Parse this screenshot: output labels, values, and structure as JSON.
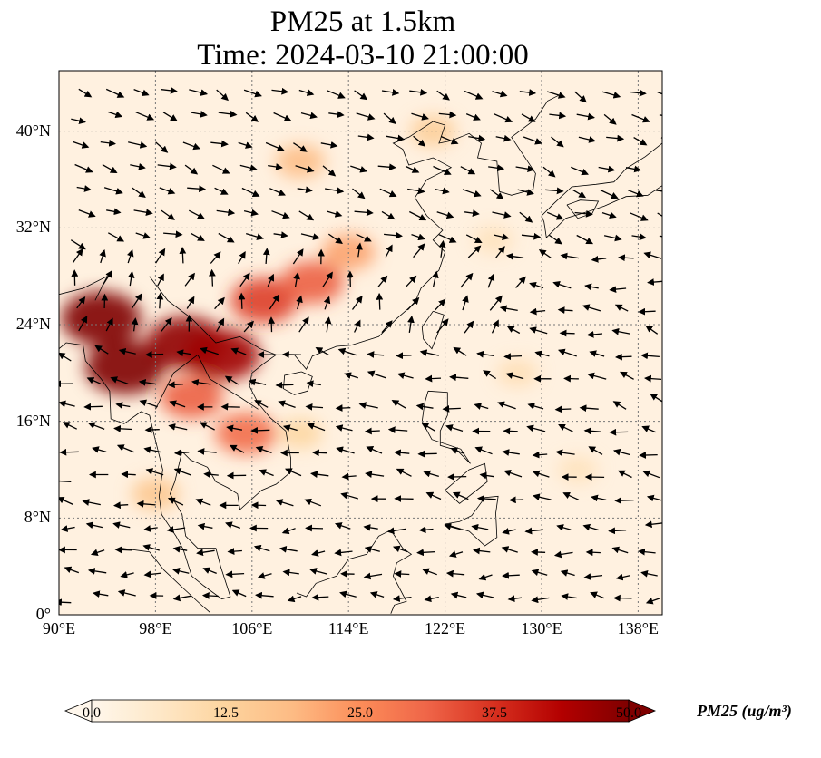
{
  "title": {
    "line1": "PM25 at 1.5km",
    "line2": "Time: 2024-03-10 21:00:00"
  },
  "map": {
    "extent": {
      "lon_min": 90,
      "lon_max": 140,
      "lat_min": 0,
      "lat_max": 45
    },
    "lat_ticks": [
      {
        "value": 0,
        "label": "0°"
      },
      {
        "value": 8,
        "label": "8°N"
      },
      {
        "value": 16,
        "label": "16°N"
      },
      {
        "value": 24,
        "label": "24°N"
      },
      {
        "value": 32,
        "label": "32°N"
      },
      {
        "value": 40,
        "label": "40°N"
      }
    ],
    "lon_ticks": [
      {
        "value": 90,
        "label": "90°E"
      },
      {
        "value": 98,
        "label": "98°E"
      },
      {
        "value": 106,
        "label": "106°E"
      },
      {
        "value": 114,
        "label": "114°E"
      },
      {
        "value": 122,
        "label": "122°E"
      },
      {
        "value": 130,
        "label": "130°E"
      },
      {
        "value": 138,
        "label": "138°E"
      }
    ],
    "gridlines": true,
    "field": "PM25",
    "colormap": "OrRd",
    "hotspots": [
      {
        "lon": 93.5,
        "lat": 24.5,
        "value": 50
      },
      {
        "lon": 95.5,
        "lat": 20.5,
        "value": 50
      },
      {
        "lon": 100.5,
        "lat": 22.5,
        "value": 48
      },
      {
        "lon": 103.5,
        "lat": 21.5,
        "value": 46
      },
      {
        "lon": 101,
        "lat": 18,
        "value": 32
      },
      {
        "lon": 105.5,
        "lat": 15,
        "value": 30
      },
      {
        "lon": 107,
        "lat": 26,
        "value": 36
      },
      {
        "lon": 111,
        "lat": 27.5,
        "value": 32
      },
      {
        "lon": 114,
        "lat": 30,
        "value": 22
      },
      {
        "lon": 110,
        "lat": 37.5,
        "value": 18
      },
      {
        "lon": 121,
        "lat": 40,
        "value": 14
      },
      {
        "lon": 98,
        "lat": 10,
        "value": 16
      },
      {
        "lon": 110,
        "lat": 15,
        "value": 12
      },
      {
        "lon": 128,
        "lat": 20,
        "value": 9
      },
      {
        "lon": 133,
        "lat": 12,
        "value": 8
      },
      {
        "lon": 126,
        "lat": 31,
        "value": 8
      }
    ],
    "wind_field": "uv"
  },
  "colorbar": {
    "ticks": [
      "0.0",
      "12.5",
      "25.0",
      "37.5",
      "50.0"
    ],
    "min": 0,
    "max": 50,
    "label": "PM25 (ug/m³)",
    "extend": "both",
    "colors": [
      "#fff7ec",
      "#fee8c8",
      "#fdd49e",
      "#fdbb84",
      "#fc8d59",
      "#ef6548",
      "#d7301f",
      "#b30000",
      "#7f0000"
    ]
  }
}
